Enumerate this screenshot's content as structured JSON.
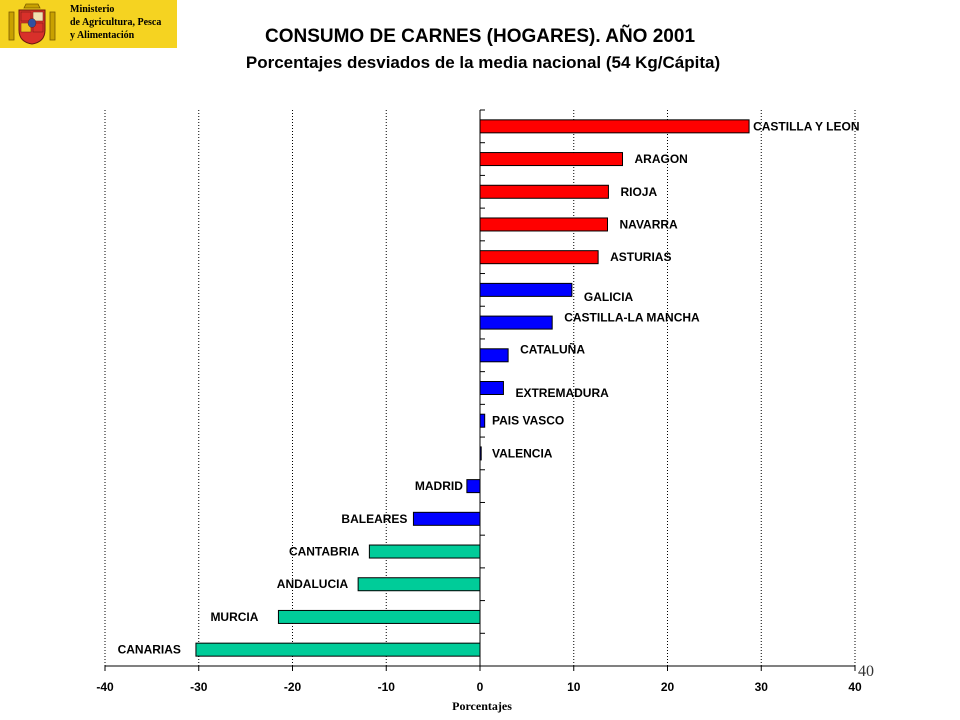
{
  "header": {
    "org_lines": [
      "Ministerio",
      "de Agricultura, Pesca",
      "y Alimentación"
    ]
  },
  "page_number": "40",
  "chart_data": {
    "type": "bar",
    "orientation": "horizontal",
    "title": "CONSUMO DE CARNES (HOGARES). AÑO 2001",
    "subtitle": "Porcentajes desviados de la media nacional (54 Kg/Cápita)",
    "xlabel": "Porcentajes",
    "ylabel": "",
    "xlim": [
      -40,
      40
    ],
    "xticks": [
      -40,
      -30,
      -20,
      -10,
      0,
      10,
      20,
      30,
      40
    ],
    "grid": "vertical dotted",
    "categories": [
      "CASTILLA Y LEON",
      "ARAGON",
      "RIOJA",
      "NAVARRA",
      "ASTURIAS",
      "GALICIA",
      "CASTILLA-LA MANCHA",
      "CATALUÑA",
      "EXTREMADURA",
      "PAIS VASCO",
      "VALENCIA",
      "MADRID",
      "BALEARES",
      "CANTABRIA",
      "ANDALUCIA",
      "MURCIA",
      "CANARIAS"
    ],
    "values": [
      28.7,
      15.2,
      13.7,
      13.6,
      12.6,
      9.8,
      7.7,
      3.0,
      2.5,
      0.5,
      0.1,
      -1.4,
      -7.1,
      -11.8,
      -13.0,
      -21.5,
      -30.3
    ],
    "colors": [
      "#ff0000",
      "#ff0000",
      "#ff0000",
      "#ff0000",
      "#ff0000",
      "#0000ff",
      "#0000ff",
      "#0000ff",
      "#0000ff",
      "#0000ff",
      "#0000ff",
      "#0000ff",
      "#0000ff",
      "#00cc99",
      "#00cc99",
      "#00cc99",
      "#00cc99"
    ]
  }
}
